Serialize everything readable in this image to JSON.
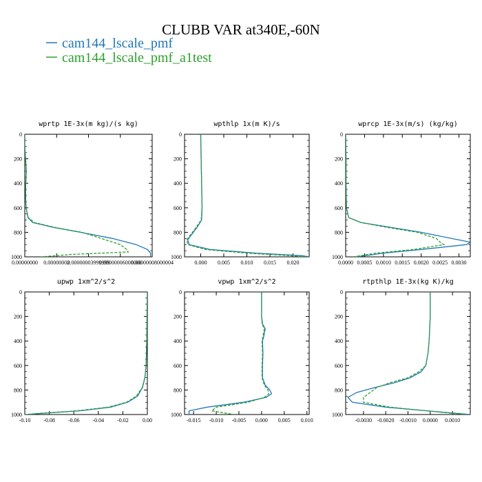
{
  "title": "CLUBB VAR at340E,-60N",
  "legend": [
    {
      "label": "cam144_lscale_pmf",
      "color": "#1f77b4"
    },
    {
      "label": "cam144_lscale_pmf_a1test",
      "color": "#2ca02c"
    }
  ],
  "chart_data": [
    {
      "type": "line",
      "title": "wprtp  1E-3x(m kg)/(s kg)",
      "xlim": [
        0.0,
        8e-08
      ],
      "ylim": [
        1000,
        0
      ],
      "yticks": [
        0,
        200,
        400,
        600,
        800,
        1000
      ],
      "xticks": [
        0.0,
        2e-08,
        4e-08,
        6e-08,
        8e-08
      ],
      "xtick_labels": [
        "0.00000000",
        "0.00000002",
        "0.00000003999999",
        "0.00000006000000",
        "0.00000008000004"
      ],
      "series": [
        {
          "name": "cam144_lscale_pmf",
          "y": [
            0,
            100,
            200,
            300,
            400,
            500,
            600,
            680,
            720,
            760,
            800,
            850,
            900,
            940,
            970,
            990,
            1000
          ],
          "x": [
            0.0,
            0.0,
            5e-10,
            1e-09,
            6e-10,
            5e-10,
            8e-10,
            2e-09,
            5e-09,
            1.8e-08,
            3.5e-08,
            5.5e-08,
            7e-08,
            7.7e-08,
            7.9e-08,
            7.9e-08,
            7.9e-08
          ]
        },
        {
          "name": "cam144_lscale_pmf_a1test",
          "y": [
            0,
            100,
            200,
            300,
            400,
            500,
            600,
            680,
            720,
            760,
            800,
            850,
            900,
            940,
            960,
            980,
            1000
          ],
          "x": [
            0.0,
            0.0,
            4e-10,
            9e-10,
            6e-10,
            5e-10,
            8e-10,
            2.2e-09,
            6e-09,
            1.9e-08,
            3.6e-08,
            4.8e-08,
            6e-08,
            6.4e-08,
            6.5e-08,
            3e-08,
            1e-08
          ]
        }
      ]
    },
    {
      "type": "line",
      "title": "wpthlp  1x(m K)/s",
      "xlim": [
        -0.0035,
        0.0235
      ],
      "ylim": [
        1000,
        0
      ],
      "yticks": [
        0,
        200,
        400,
        600,
        800,
        1000
      ],
      "xticks": [
        0.0,
        0.005,
        0.01,
        0.015,
        0.02
      ],
      "xtick_labels": [
        "0.000",
        "0.005",
        "0.010",
        "0.015",
        "0.020"
      ],
      "series": [
        {
          "name": "cam144_lscale_pmf",
          "y": [
            0,
            200,
            400,
            600,
            700,
            760,
            820,
            860,
            900,
            940,
            970,
            990,
            1000
          ],
          "x": [
            0.0,
            0.0001,
            0.0002,
            0.0003,
            0.0002,
            -0.0008,
            -0.002,
            -0.0028,
            -0.0025,
            0.002,
            0.012,
            0.022,
            0.0235
          ]
        },
        {
          "name": "cam144_lscale_pmf_a1test",
          "y": [
            0,
            200,
            400,
            600,
            700,
            760,
            820,
            860,
            900,
            940,
            970,
            990,
            1000
          ],
          "x": [
            0.0,
            0.0001,
            0.0002,
            0.0003,
            0.0001,
            -0.001,
            -0.0022,
            -0.003,
            -0.0028,
            0.001,
            0.01,
            0.019,
            0.023
          ]
        }
      ]
    },
    {
      "type": "line",
      "title": "wprcp  1E-3x(m/s) (kg/kg)",
      "xlim": [
        0.0,
        0.0033
      ],
      "ylim": [
        1000,
        0
      ],
      "yticks": [
        0,
        200,
        400,
        600,
        800,
        1000
      ],
      "xticks": [
        0.0,
        0.0005,
        0.001,
        0.0015,
        0.002,
        0.0025,
        0.003
      ],
      "xtick_labels": [
        "0.0000",
        "0.0005",
        "0.0010",
        "0.0015",
        "0.0020",
        "0.0025",
        "0.0030"
      ],
      "series": [
        {
          "name": "cam144_lscale_pmf",
          "y": [
            0,
            200,
            400,
            600,
            680,
            720,
            760,
            800,
            850,
            880,
            900,
            940,
            970,
            1000
          ],
          "x": [
            0.0,
            1e-05,
            1e-05,
            2e-05,
            8e-05,
            0.0004,
            0.0012,
            0.002,
            0.0028,
            0.0033,
            0.0032,
            0.002,
            0.001,
            0.0003
          ]
        },
        {
          "name": "cam144_lscale_pmf_a1test",
          "y": [
            0,
            200,
            400,
            600,
            680,
            720,
            760,
            800,
            850,
            880,
            900,
            940,
            970,
            1000
          ],
          "x": [
            0.0,
            1e-05,
            1e-05,
            2e-05,
            8e-05,
            0.0004,
            0.0011,
            0.0019,
            0.0024,
            0.0025,
            0.0026,
            0.0018,
            0.0008,
            0.0002
          ]
        }
      ]
    },
    {
      "type": "line",
      "title": "upwp  1xm^2/s^2",
      "xlim": [
        -0.1,
        0.0
      ],
      "ylim": [
        1000,
        0
      ],
      "yticks": [
        0,
        200,
        400,
        600,
        800,
        1000
      ],
      "xticks": [
        -0.1,
        -0.08,
        -0.06,
        -0.04,
        -0.02,
        0.0
      ],
      "xtick_labels": [
        "-0.10",
        "-0.08",
        "-0.06",
        "-0.04",
        "-0.02",
        "0.00"
      ],
      "series": [
        {
          "name": "cam144_lscale_pmf",
          "y": [
            0,
            200,
            400,
            600,
            700,
            780,
            850,
            900,
            940,
            970,
            990,
            1000
          ],
          "x": [
            0.0,
            -0.0003,
            -0.0005,
            -0.001,
            -0.002,
            -0.004,
            -0.008,
            -0.016,
            -0.03,
            -0.055,
            -0.085,
            -0.099
          ]
        },
        {
          "name": "cam144_lscale_pmf_a1test",
          "y": [
            0,
            200,
            400,
            600,
            700,
            780,
            850,
            900,
            940,
            970,
            990,
            1000
          ],
          "x": [
            0.0,
            -0.0003,
            -0.0005,
            -0.001,
            -0.0021,
            -0.0042,
            -0.009,
            -0.017,
            -0.032,
            -0.058,
            -0.088,
            -0.1
          ]
        }
      ]
    },
    {
      "type": "line",
      "title": "vpwp  1xm^2/s^2",
      "xlim": [
        -0.017,
        0.0105
      ],
      "ylim": [
        1000,
        0
      ],
      "yticks": [
        0,
        200,
        400,
        600,
        800,
        1000
      ],
      "xticks": [
        -0.015,
        -0.01,
        -0.005,
        0.0,
        0.005,
        0.01
      ],
      "xtick_labels": [
        "-0.015",
        "-0.010",
        "-0.005",
        "0.000",
        "0.005",
        "0.010"
      ],
      "series": [
        {
          "name": "cam144_lscale_pmf",
          "y": [
            0,
            200,
            260,
            300,
            360,
            400,
            500,
            600,
            700,
            760,
            800,
            830,
            860,
            900,
            940,
            970,
            1000
          ],
          "x": [
            0.0,
            0.0,
            0.0002,
            0.0008,
            0.0005,
            0.0002,
            0.0003,
            0.0002,
            0.0002,
            0.0008,
            0.0018,
            0.0022,
            0.001,
            -0.004,
            -0.012,
            -0.016,
            -0.016
          ]
        },
        {
          "name": "cam144_lscale_pmf_a1test",
          "y": [
            0,
            200,
            260,
            300,
            360,
            400,
            500,
            600,
            700,
            760,
            800,
            830,
            860,
            900,
            940,
            970,
            1000
          ],
          "x": [
            0.0,
            0.0,
            0.0001,
            0.0006,
            0.0003,
            0.0001,
            0.0002,
            0.0001,
            0.0001,
            0.0006,
            0.0014,
            0.0016,
            0.0006,
            -0.003,
            -0.01,
            -0.011,
            -0.006
          ]
        }
      ]
    },
    {
      "type": "line",
      "title": "rtpthlp  1E-3x(kg K)/kg",
      "xlim": [
        -0.0038,
        0.0018
      ],
      "ylim": [
        1000,
        0
      ],
      "yticks": [
        0,
        200,
        400,
        600,
        800,
        1000
      ],
      "xticks": [
        -0.003,
        -0.002,
        -0.001,
        0.0,
        0.001
      ],
      "xtick_labels": [
        "-0.0030",
        "-0.0020",
        "-0.0010",
        "0.0000",
        "0.0010"
      ],
      "series": [
        {
          "name": "cam144_lscale_pmf",
          "y": [
            0,
            200,
            400,
            500,
            600,
            650,
            700,
            740,
            780,
            820,
            860,
            900,
            940,
            980,
            1000
          ],
          "x": [
            0.0,
            0.0,
            -5e-05,
            -0.0001,
            -0.0002,
            -0.0004,
            -0.0009,
            -0.0016,
            -0.0025,
            -0.0033,
            -0.0037,
            -0.0035,
            -0.002,
            0.0005,
            0.0018
          ]
        },
        {
          "name": "cam144_lscale_pmf_a1test",
          "y": [
            0,
            200,
            400,
            500,
            600,
            650,
            700,
            740,
            780,
            820,
            860,
            900,
            940,
            980,
            1000
          ],
          "x": [
            0.0,
            0.0,
            -5e-05,
            -0.0001,
            -0.0002,
            -0.0005,
            -0.001,
            -0.0018,
            -0.0024,
            -0.0027,
            -0.003,
            -0.003,
            -0.0018,
            0.0004,
            0.0016
          ]
        }
      ]
    }
  ]
}
